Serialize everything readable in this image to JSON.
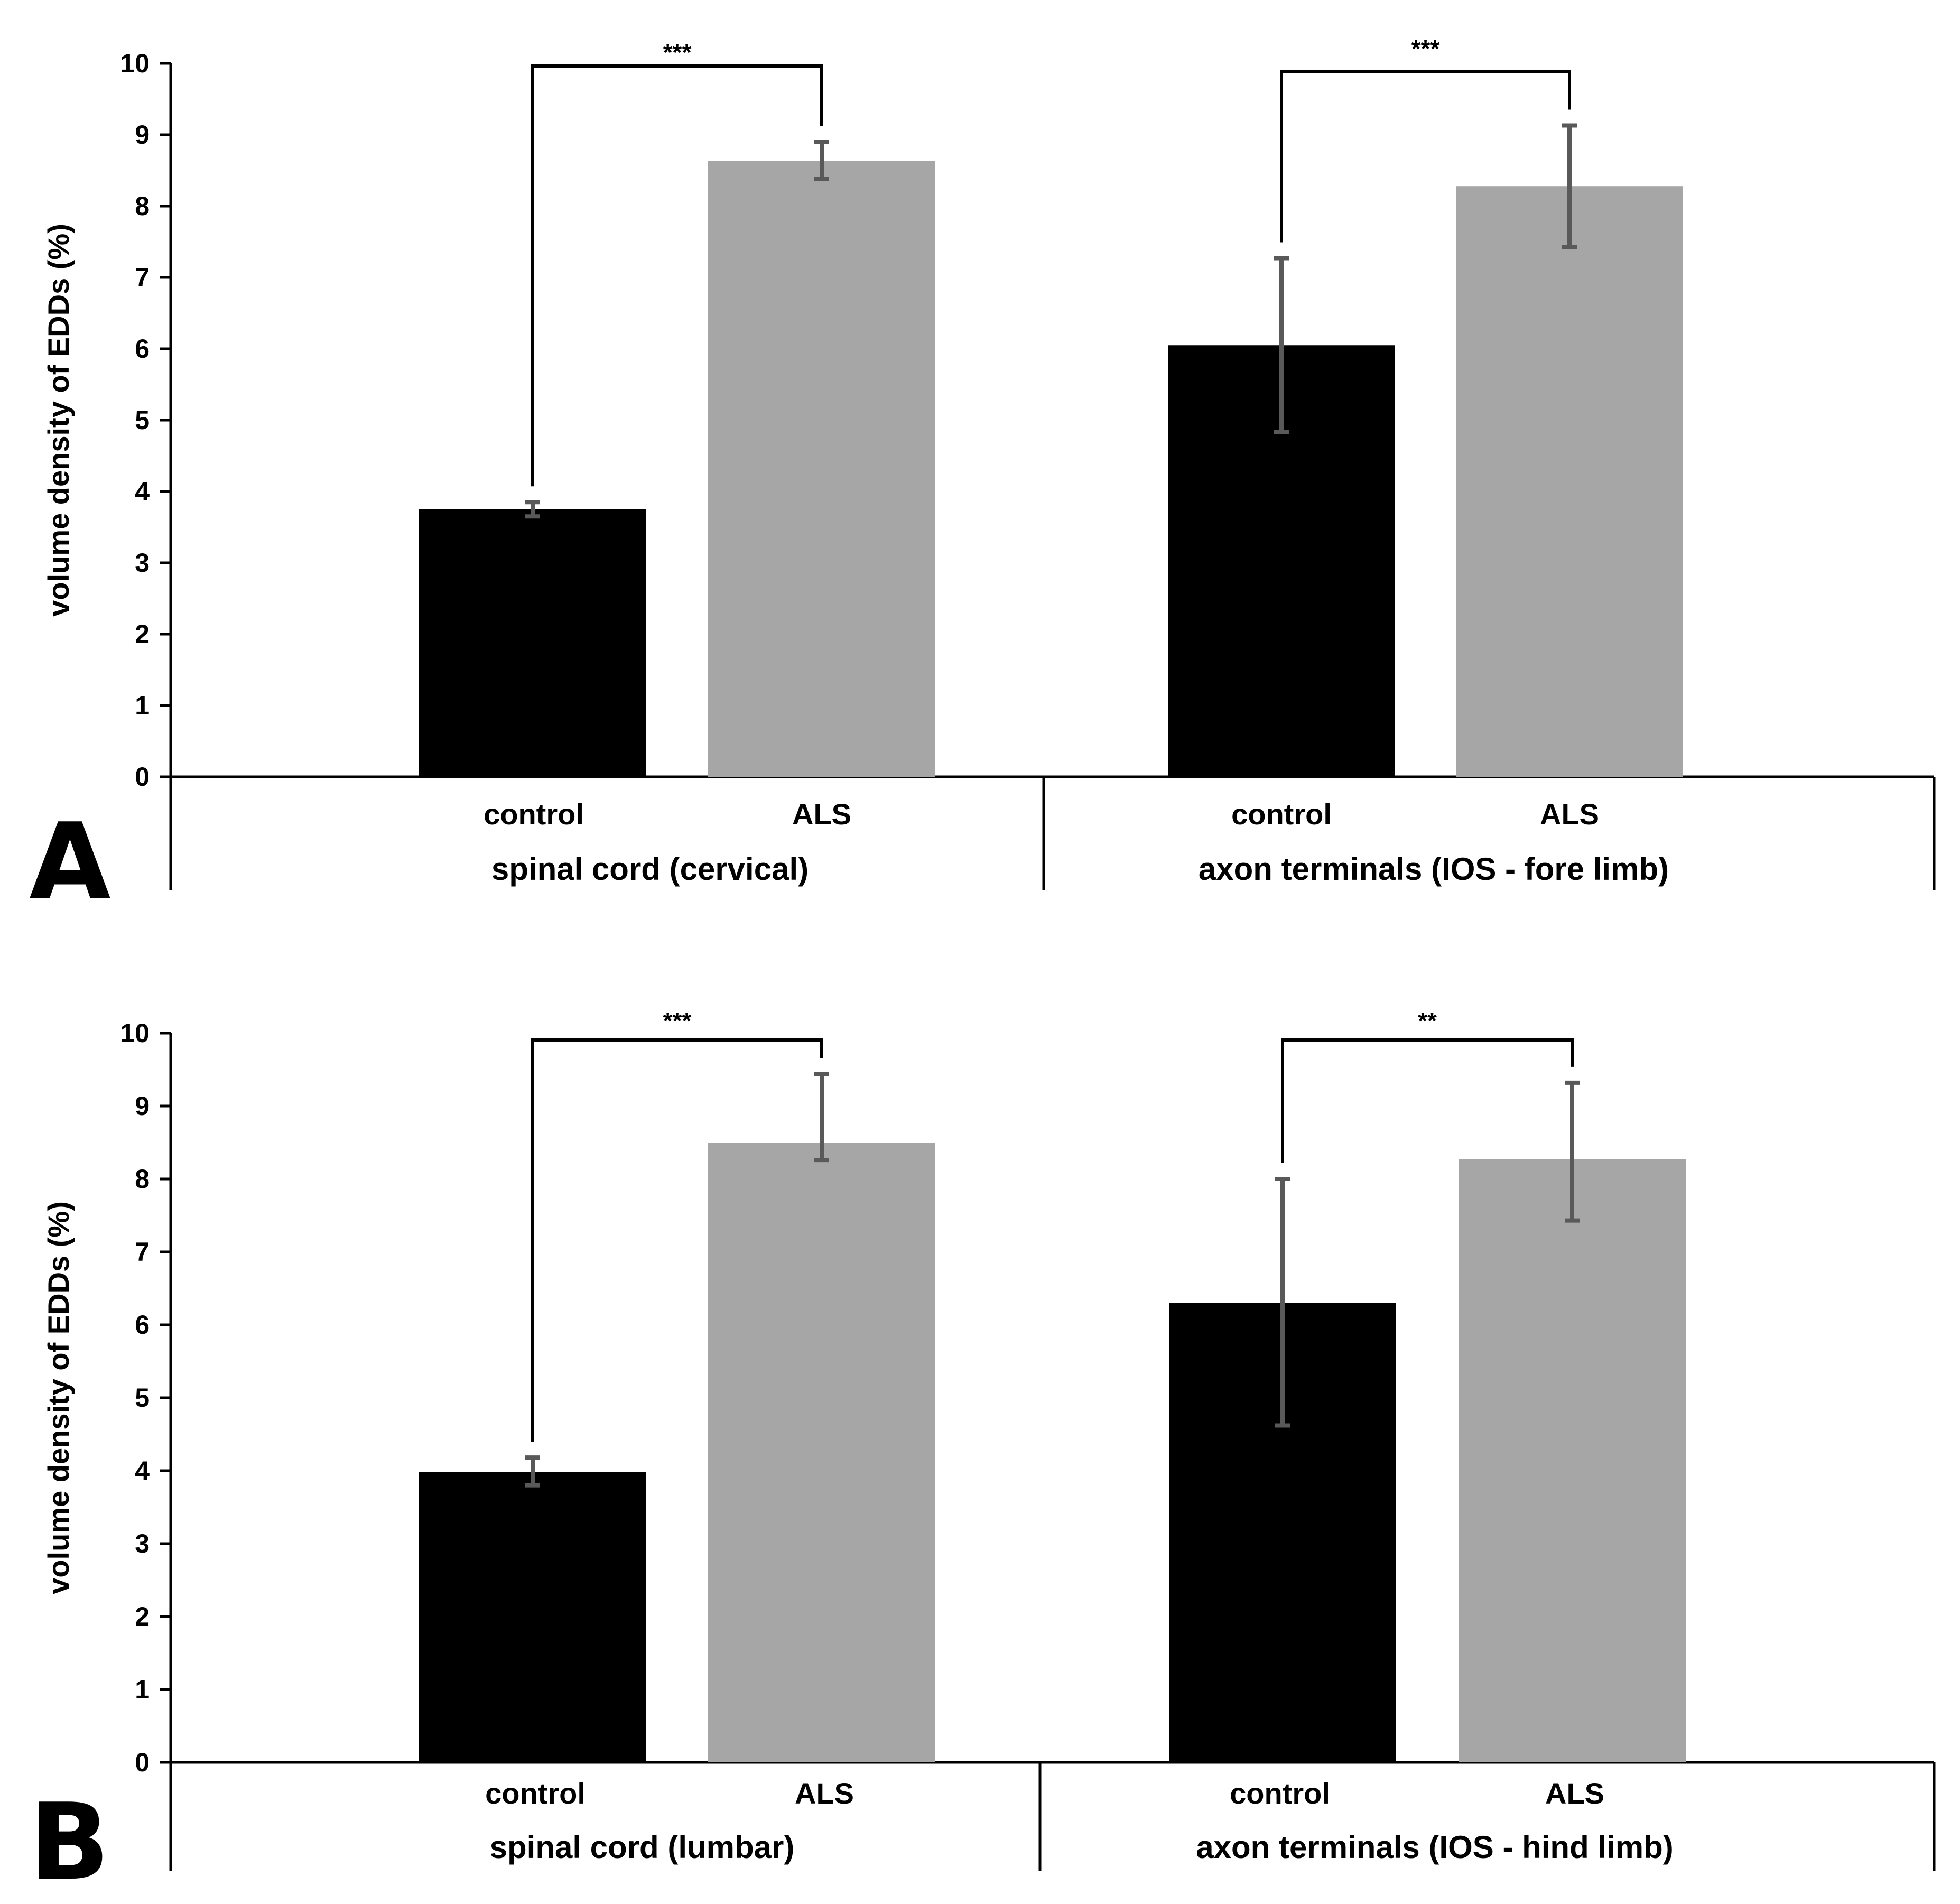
{
  "chart_data": [
    {
      "type": "bar",
      "panel": "A",
      "ylabel": "volume density of EDDs (%)",
      "ylim": [
        0,
        10
      ],
      "yticks": [
        0,
        1,
        2,
        3,
        4,
        5,
        6,
        7,
        8,
        9,
        10
      ],
      "groups": [
        {
          "label": "spinal cord (cervical)",
          "bars": [
            {
              "category": "control",
              "value": 3.75,
              "err_low": 3.65,
              "err_high": 3.85,
              "color": "#000000"
            },
            {
              "category": "ALS",
              "value": 8.63,
              "err_low": 8.38,
              "err_high": 8.9,
              "color": "#a6a6a6"
            }
          ],
          "significance": "***"
        },
        {
          "label": "axon terminals (IOS - fore limb)",
          "bars": [
            {
              "category": "control",
              "value": 6.05,
              "err_low": 4.83,
              "err_high": 7.27,
              "color": "#000000"
            },
            {
              "category": "ALS",
              "value": 8.28,
              "err_low": 7.43,
              "err_high": 9.13,
              "color": "#a6a6a6"
            }
          ],
          "significance": "***"
        }
      ]
    },
    {
      "type": "bar",
      "panel": "B",
      "ylabel": "volume density of EDDs (%)",
      "ylim": [
        0,
        10
      ],
      "yticks": [
        0,
        1,
        2,
        3,
        4,
        5,
        6,
        7,
        8,
        9,
        10
      ],
      "groups": [
        {
          "label": "spinal cord (lumbar)",
          "bars": [
            {
              "category": "control",
              "value": 3.98,
              "err_low": 3.8,
              "err_high": 4.18,
              "color": "#000000"
            },
            {
              "category": "ALS",
              "value": 8.5,
              "err_low": 8.26,
              "err_high": 9.44,
              "color": "#a6a6a6"
            }
          ],
          "significance": "***"
        },
        {
          "label": "axon terminals (IOS - hind limb)",
          "bars": [
            {
              "category": "control",
              "value": 6.3,
              "err_low": 4.62,
              "err_high": 8.0,
              "color": "#000000"
            },
            {
              "category": "ALS",
              "value": 8.27,
              "err_low": 7.43,
              "err_high": 9.32,
              "color": "#a6a6a6"
            }
          ],
          "significance": "**"
        }
      ]
    }
  ],
  "colors": {
    "axis": "#000000",
    "error_bar": "#595959"
  }
}
